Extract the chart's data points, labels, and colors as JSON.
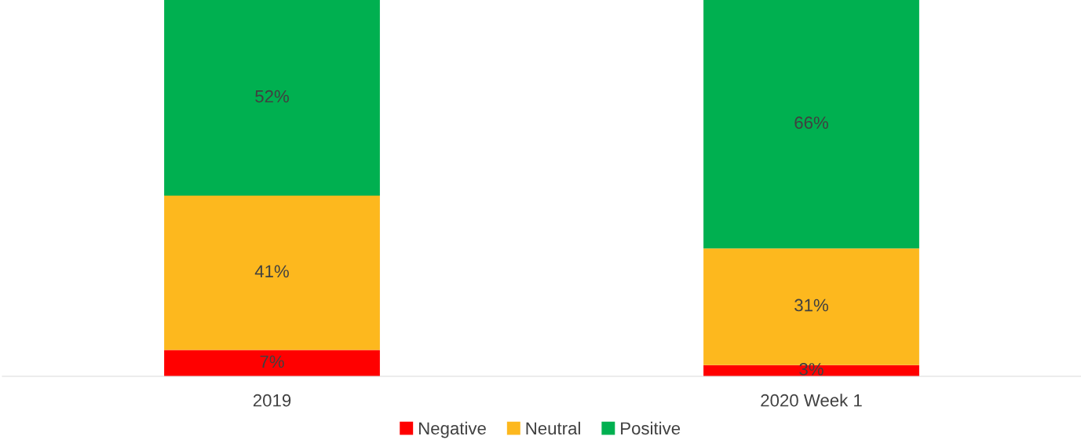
{
  "chart_data": {
    "type": "bar",
    "stacked": true,
    "categories": [
      "2019",
      "2020 Week 1"
    ],
    "series": [
      {
        "name": "Negative",
        "color": "#ff0000",
        "values": [
          7,
          3
        ],
        "value_labels": [
          "7%",
          "3%"
        ]
      },
      {
        "name": "Neutral",
        "color": "#fdb81e",
        "values": [
          41,
          31
        ],
        "value_labels": [
          "41%",
          "31%"
        ]
      },
      {
        "name": "Positive",
        "color": "#00b050",
        "values": [
          52,
          66
        ],
        "value_labels": [
          "52%",
          "66%"
        ]
      }
    ],
    "legend": "bottom"
  }
}
